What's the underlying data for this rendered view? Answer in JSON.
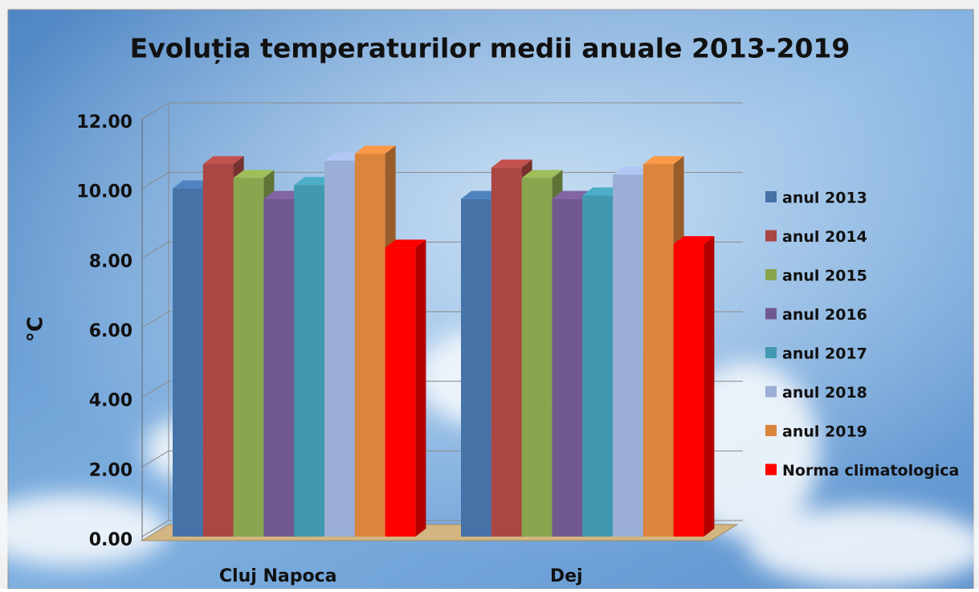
{
  "chart_data": {
    "type": "bar3d",
    "title": "Evoluția temperaturilor medii anuale 2013-2019",
    "ylabel": "°C",
    "categories": [
      "Cluj Napoca",
      "Dej"
    ],
    "series": [
      {
        "name": "anul 2013",
        "color": "#4572a7",
        "values": [
          10.0,
          9.7
        ]
      },
      {
        "name": "anul 2014",
        "color": "#aa4643",
        "values": [
          10.7,
          10.6
        ]
      },
      {
        "name": "anul 2015",
        "color": "#89a54e",
        "values": [
          10.3,
          10.3
        ]
      },
      {
        "name": "anul 2016",
        "color": "#71588f",
        "values": [
          9.7,
          9.7
        ]
      },
      {
        "name": "anul 2017",
        "color": "#4198af",
        "values": [
          10.1,
          9.8
        ]
      },
      {
        "name": "anul 2018",
        "color": "#9aaed6",
        "values": [
          10.8,
          10.4
        ]
      },
      {
        "name": "anul 2019",
        "color": "#db843d",
        "values": [
          11.0,
          10.7
        ]
      },
      {
        "name": "Norma climatologica",
        "color": "#ff0000",
        "values": [
          8.3,
          8.4
        ]
      }
    ],
    "ylim": [
      0,
      12
    ],
    "yticks": [
      {
        "value": 0,
        "label": "0.00"
      },
      {
        "value": 2,
        "label": "2.00"
      },
      {
        "value": 4,
        "label": "4.00"
      },
      {
        "value": 6,
        "label": "6.00"
      },
      {
        "value": 8,
        "label": "8.00"
      },
      {
        "value": 10,
        "label": "10.00"
      },
      {
        "value": 12,
        "label": "12.00"
      }
    ],
    "grid": true
  }
}
